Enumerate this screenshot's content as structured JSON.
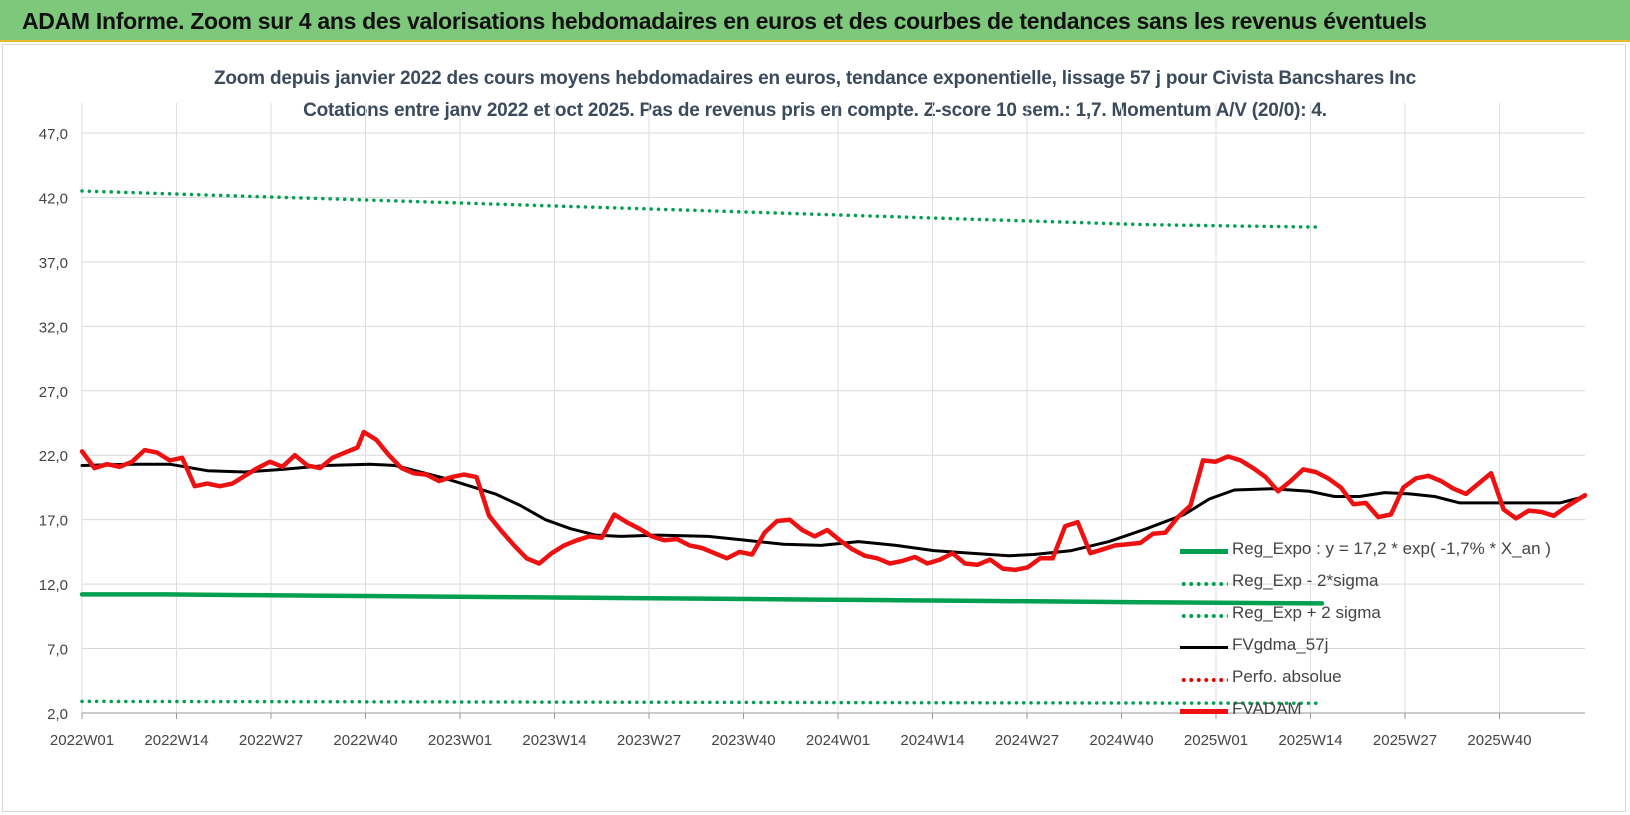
{
  "header": {
    "title": "ADAM Informe. Zoom sur 4 ans des valorisations hebdomadaires en euros et des courbes de tendances sans les revenus éventuels"
  },
  "chart_data": {
    "type": "line",
    "title": "Zoom depuis janvier 2022 des cours moyens hebdomadaires en euros, tendance exponentielle, lissage 57 j pour Civista Bancshares Inc",
    "subtitle": "Cotations entre janv 2022 et oct 2025. Pas de revenus pris en compte. Z-score 10 sem.: 1,7. Momentum A/V (20/0): 4.",
    "xlabel": "",
    "ylabel": "",
    "ylim": [
      2.0,
      47.0
    ],
    "yticks": [
      "2,0",
      "7,0",
      "12,0",
      "17,0",
      "22,0",
      "27,0",
      "32,0",
      "37,0",
      "42,0",
      "47,0"
    ],
    "xticks": [
      "2022W01",
      "2022W14",
      "2022W27",
      "2022W40",
      "2023W01",
      "2023W14",
      "2023W27",
      "2023W40",
      "2024W01",
      "2024W14",
      "2024W27",
      "2024W40",
      "2025W01",
      "2025W14",
      "2025W27",
      "2025W40"
    ],
    "x_week_index_range": [
      0,
      198
    ],
    "grid": true,
    "legend_position": "bottom-right",
    "series": [
      {
        "name": "Reg_Expo : y = 17,2 * exp( -1,7% * X_an )",
        "color": "#00a050",
        "style": "solid-thick",
        "points": [
          [
            0,
            11.2
          ],
          [
            13,
            11.2
          ],
          [
            26,
            11.15
          ],
          [
            39,
            11.1
          ],
          [
            52,
            11.05
          ],
          [
            65,
            11.0
          ],
          [
            78,
            10.95
          ],
          [
            91,
            10.9
          ],
          [
            104,
            10.85
          ],
          [
            117,
            10.8
          ],
          [
            130,
            10.75
          ],
          [
            143,
            10.7
          ],
          [
            156,
            10.65
          ],
          [
            169,
            10.6
          ],
          [
            182,
            10.55
          ],
          [
            198,
            10.5
          ]
        ]
      },
      {
        "name": "Reg_Exp - 2*sigma",
        "color": "#00a050",
        "style": "dotted",
        "points": [
          [
            0,
            2.9
          ],
          [
            66,
            2.85
          ],
          [
            132,
            2.8
          ],
          [
            198,
            2.75
          ]
        ]
      },
      {
        "name": "Reg_Exp + 2 sigma",
        "color": "#00a050",
        "style": "dotted",
        "points": [
          [
            0,
            42.5
          ],
          [
            13,
            42.3
          ],
          [
            26,
            42.1
          ],
          [
            39,
            41.9
          ],
          [
            52,
            41.7
          ],
          [
            65,
            41.5
          ],
          [
            78,
            41.3
          ],
          [
            91,
            41.1
          ],
          [
            104,
            40.9
          ],
          [
            117,
            40.7
          ],
          [
            130,
            40.5
          ],
          [
            143,
            40.3
          ],
          [
            156,
            40.1
          ],
          [
            169,
            39.9
          ],
          [
            182,
            39.8
          ],
          [
            198,
            39.7
          ]
        ]
      },
      {
        "name": "FVgdma_57j",
        "color": "#000000",
        "style": "solid",
        "points": [
          [
            0,
            21.2
          ],
          [
            8,
            21.3
          ],
          [
            14,
            21.3
          ],
          [
            20,
            20.8
          ],
          [
            26,
            20.7
          ],
          [
            32,
            20.9
          ],
          [
            39,
            21.2
          ],
          [
            46,
            21.3
          ],
          [
            50,
            21.2
          ],
          [
            54,
            20.7
          ],
          [
            58,
            20.2
          ],
          [
            62,
            19.6
          ],
          [
            66,
            19.0
          ],
          [
            70,
            18.1
          ],
          [
            74,
            17.0
          ],
          [
            78,
            16.3
          ],
          [
            82,
            15.8
          ],
          [
            86,
            15.7
          ],
          [
            92,
            15.8
          ],
          [
            100,
            15.7
          ],
          [
            106,
            15.4
          ],
          [
            112,
            15.1
          ],
          [
            118,
            15.0
          ],
          [
            124,
            15.3
          ],
          [
            130,
            15.0
          ],
          [
            136,
            14.6
          ],
          [
            142,
            14.4
          ],
          [
            148,
            14.2
          ],
          [
            152,
            14.3
          ],
          [
            158,
            14.6
          ],
          [
            164,
            15.3
          ],
          [
            170,
            16.3
          ],
          [
            176,
            17.4
          ],
          [
            180,
            18.6
          ],
          [
            184,
            19.3
          ],
          [
            190,
            19.4
          ],
          [
            196,
            19.2
          ],
          [
            200,
            18.8
          ],
          [
            204,
            18.8
          ],
          [
            208,
            19.1
          ],
          [
            212,
            19.0
          ],
          [
            216,
            18.8
          ],
          [
            220,
            18.3
          ],
          [
            228,
            18.3
          ],
          [
            236,
            18.3
          ],
          [
            240,
            18.8
          ]
        ]
      },
      {
        "name": "Perfo. absolue",
        "color": "#e00000",
        "style": "dotted",
        "points": []
      },
      {
        "name": "FVADAM",
        "color": "#ee1111",
        "style": "solid-thick",
        "points": [
          [
            0,
            22.3
          ],
          [
            2,
            21.0
          ],
          [
            4,
            21.3
          ],
          [
            6,
            21.1
          ],
          [
            8,
            21.5
          ],
          [
            10,
            22.4
          ],
          [
            12,
            22.2
          ],
          [
            14,
            21.6
          ],
          [
            16,
            21.8
          ],
          [
            18,
            19.6
          ],
          [
            20,
            19.8
          ],
          [
            22,
            19.6
          ],
          [
            24,
            19.8
          ],
          [
            26,
            20.4
          ],
          [
            28,
            21.0
          ],
          [
            30,
            21.5
          ],
          [
            32,
            21.1
          ],
          [
            34,
            22.0
          ],
          [
            36,
            21.2
          ],
          [
            38,
            21.0
          ],
          [
            40,
            21.8
          ],
          [
            42,
            22.2
          ],
          [
            44,
            22.6
          ],
          [
            45,
            23.8
          ],
          [
            47,
            23.2
          ],
          [
            49,
            22.0
          ],
          [
            51,
            21.0
          ],
          [
            53,
            20.6
          ],
          [
            55,
            20.5
          ],
          [
            57,
            20.0
          ],
          [
            59,
            20.3
          ],
          [
            61,
            20.5
          ],
          [
            63,
            20.3
          ],
          [
            65,
            17.3
          ],
          [
            67,
            16.1
          ],
          [
            69,
            15.0
          ],
          [
            71,
            14.0
          ],
          [
            73,
            13.6
          ],
          [
            75,
            14.4
          ],
          [
            77,
            15.0
          ],
          [
            79,
            15.4
          ],
          [
            81,
            15.7
          ],
          [
            83,
            15.6
          ],
          [
            85,
            17.4
          ],
          [
            87,
            16.8
          ],
          [
            89,
            16.3
          ],
          [
            91,
            15.7
          ],
          [
            93,
            15.4
          ],
          [
            95,
            15.5
          ],
          [
            97,
            15.0
          ],
          [
            99,
            14.8
          ],
          [
            101,
            14.4
          ],
          [
            103,
            14.0
          ],
          [
            105,
            14.5
          ],
          [
            107,
            14.3
          ],
          [
            109,
            16.0
          ],
          [
            111,
            16.9
          ],
          [
            113,
            17.0
          ],
          [
            115,
            16.2
          ],
          [
            117,
            15.7
          ],
          [
            119,
            16.2
          ],
          [
            121,
            15.4
          ],
          [
            123,
            14.7
          ],
          [
            125,
            14.2
          ],
          [
            127,
            14.0
          ],
          [
            129,
            13.6
          ],
          [
            131,
            13.8
          ],
          [
            133,
            14.1
          ],
          [
            135,
            13.6
          ],
          [
            137,
            13.9
          ],
          [
            139,
            14.4
          ],
          [
            141,
            13.6
          ],
          [
            143,
            13.5
          ],
          [
            145,
            13.9
          ],
          [
            147,
            13.2
          ],
          [
            149,
            13.1
          ],
          [
            151,
            13.3
          ],
          [
            153,
            14.0
          ],
          [
            155,
            14.0
          ],
          [
            157,
            16.5
          ],
          [
            159,
            16.8
          ],
          [
            161,
            14.4
          ],
          [
            163,
            14.7
          ],
          [
            165,
            15.0
          ],
          [
            167,
            15.1
          ],
          [
            169,
            15.2
          ],
          [
            171,
            15.9
          ],
          [
            173,
            16.0
          ],
          [
            175,
            17.2
          ],
          [
            177,
            18.1
          ],
          [
            179,
            21.6
          ],
          [
            181,
            21.5
          ],
          [
            183,
            21.9
          ],
          [
            185,
            21.6
          ],
          [
            187,
            21.0
          ],
          [
            189,
            20.3
          ],
          [
            191,
            19.2
          ],
          [
            193,
            20.0
          ],
          [
            195,
            20.9
          ],
          [
            197,
            20.7
          ],
          [
            199,
            20.2
          ],
          [
            201,
            19.5
          ],
          [
            203,
            18.2
          ],
          [
            205,
            18.3
          ],
          [
            207,
            17.2
          ],
          [
            209,
            17.4
          ],
          [
            211,
            19.5
          ],
          [
            213,
            20.2
          ],
          [
            215,
            20.4
          ],
          [
            217,
            20.0
          ],
          [
            219,
            19.4
          ],
          [
            221,
            19.0
          ],
          [
            223,
            19.8
          ],
          [
            225,
            20.6
          ],
          [
            227,
            17.8
          ],
          [
            229,
            17.1
          ],
          [
            231,
            17.7
          ],
          [
            233,
            17.6
          ],
          [
            235,
            17.3
          ],
          [
            237,
            18.0
          ],
          [
            240,
            18.9
          ]
        ]
      }
    ]
  }
}
